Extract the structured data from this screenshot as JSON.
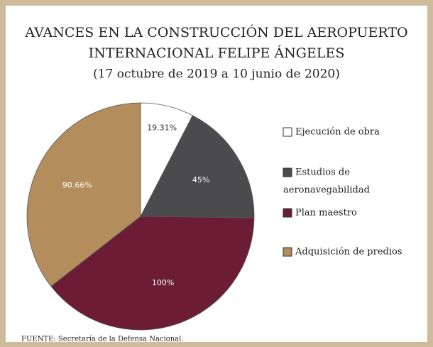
{
  "chart_data": {
    "type": "pie",
    "title": [
      "AVANCES EN LA CONSTRUCCIÓN DEL AEROPUERTO",
      "INTERNACIONAL FELIPE ÁNGELES"
    ],
    "subtitle": "(17 octubre de 2019 a 10 junio de 2020)",
    "categories": [
      "Ejecución de obra",
      [
        "Estudios de",
        "aeronavegabilidad"
      ],
      "Plan maestro",
      "Adquisición de predios"
    ],
    "values": [
      19.31,
      45,
      100,
      90.66
    ],
    "value_labels": [
      "19.31%",
      "45%",
      "100%",
      "90.66%"
    ],
    "colors": [
      "#ffffff",
      "#4b4b4d",
      "#6c1d35",
      "#b38d5b"
    ],
    "source": "FUENTE: Secretaría de la Defensa Nacional."
  }
}
